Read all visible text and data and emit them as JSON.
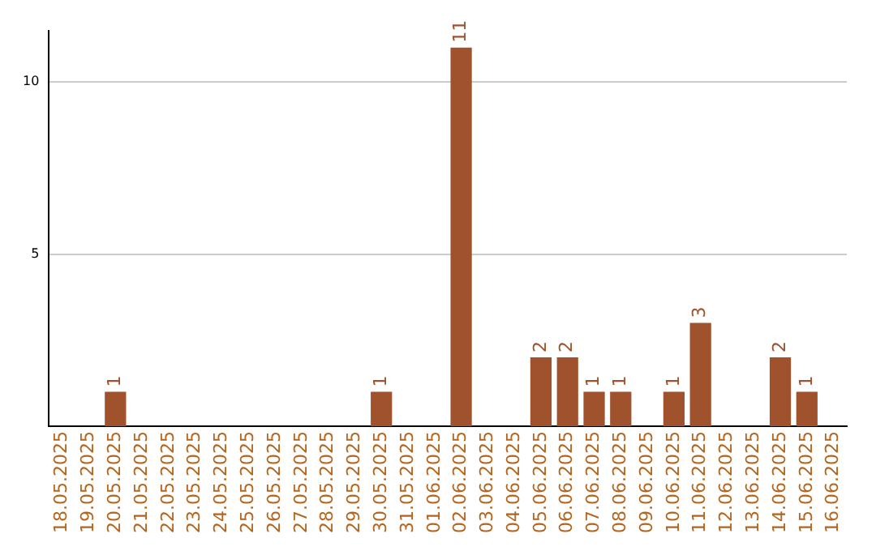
{
  "chart_data": {
    "type": "bar",
    "categories": [
      "18.05.2025",
      "19.05.2025",
      "20.05.2025",
      "21.05.2025",
      "22.05.2025",
      "23.05.2025",
      "24.05.2025",
      "25.05.2025",
      "26.05.2025",
      "27.05.2025",
      "28.05.2025",
      "29.05.2025",
      "30.05.2025",
      "31.05.2025",
      "01.06.2025",
      "02.06.2025",
      "03.06.2025",
      "04.06.2025",
      "05.06.2025",
      "06.06.2025",
      "07.06.2025",
      "08.06.2025",
      "09.06.2025",
      "10.06.2025",
      "11.06.2025",
      "12.06.2025",
      "13.06.2025",
      "14.06.2025",
      "15.06.2025",
      "16.06.2025"
    ],
    "values": [
      null,
      null,
      1,
      null,
      null,
      null,
      null,
      null,
      null,
      null,
      null,
      null,
      1,
      null,
      null,
      11,
      null,
      null,
      2,
      2,
      1,
      1,
      null,
      1,
      3,
      null,
      null,
      2,
      1,
      null
    ],
    "color": "#a0522d",
    "ylim": [
      0,
      11.5
    ],
    "yticks": [
      5,
      10
    ],
    "grid": "y",
    "data_labels": true,
    "legend": false
  }
}
